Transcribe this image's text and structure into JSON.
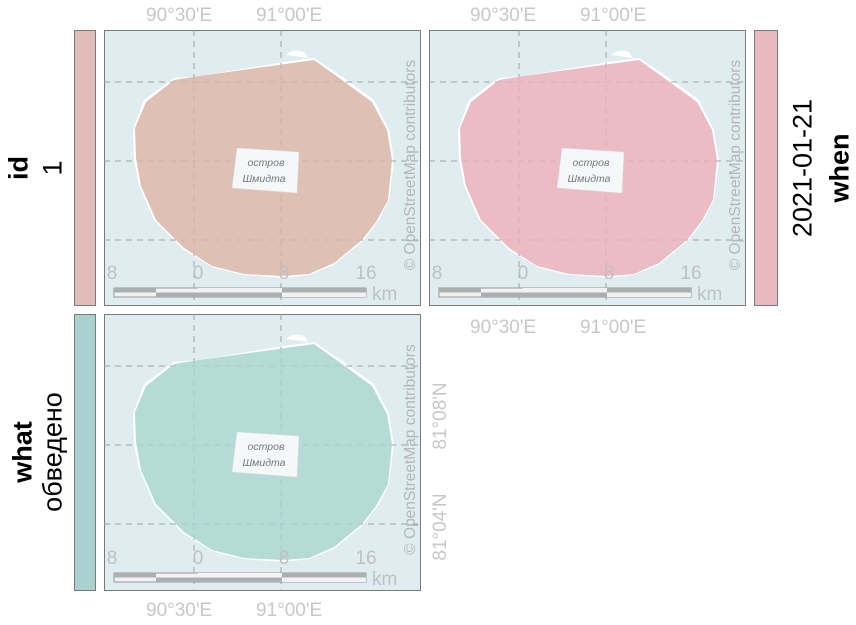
{
  "strips": {
    "id": {
      "name": "id",
      "value": "1",
      "color": "#e0bdb8"
    },
    "what": {
      "name": "what",
      "value": "обведено",
      "color": "#a9d1cf"
    },
    "when": {
      "name": "when",
      "value": "2021-01-21",
      "color": "#e8b9be"
    }
  },
  "panels": [
    {
      "key": "id-1",
      "fill": "#d8b5a8"
    },
    {
      "key": "when-2021-01-21",
      "fill": "#e8b0b8"
    },
    {
      "key": "what-obvedeno",
      "fill": "#a8d5d0"
    }
  ],
  "map": {
    "island_label_line1": "остров",
    "island_label_line2": "Шмидта",
    "attribution": "© OpenStreetMap contributors",
    "scale_labels": [
      "8",
      "0",
      "8",
      "16"
    ],
    "scale_unit": "km",
    "water_color": "#dfedf1"
  },
  "axes": {
    "lon_labels": [
      "90°30'E",
      "91°00'E"
    ],
    "lat_labels": [
      "81°04'N",
      "81°08'N"
    ]
  }
}
